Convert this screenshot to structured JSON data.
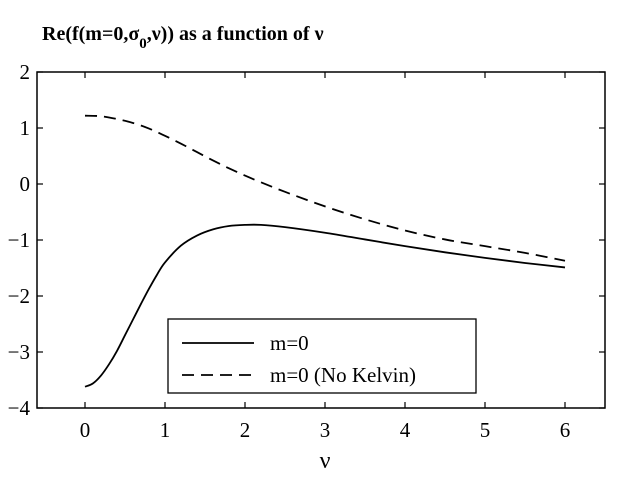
{
  "chart_data": {
    "type": "line",
    "title_parts": {
      "prefix": "Re(f(m=0,σ",
      "subscript": "0",
      "suffix": ",ν)) as a function of ν"
    },
    "xlabel": "ν",
    "ylabel": "",
    "xlim": [
      -0.6,
      6.5
    ],
    "ylim": [
      -4,
      2
    ],
    "xticks": [
      0,
      1,
      2,
      3,
      4,
      5,
      6
    ],
    "yticks": [
      2,
      1,
      0,
      -1,
      -2,
      -3,
      -4
    ],
    "xtick_labels": [
      "0",
      "1",
      "2",
      "3",
      "4",
      "5",
      "6"
    ],
    "ytick_labels": [
      "2",
      "1",
      "0",
      "−1",
      "−2",
      "−3",
      "−4"
    ],
    "grid": false,
    "legend_position": "bottom-center",
    "series": [
      {
        "name": "m=0",
        "style": "solid",
        "color": "#000000",
        "x": [
          0,
          0.1,
          0.2,
          0.3,
          0.4,
          0.5,
          0.6,
          0.7,
          0.8,
          0.9,
          1.0,
          1.2,
          1.4,
          1.6,
          1.8,
          2.0,
          2.2,
          2.5,
          3.0,
          3.5,
          4.0,
          4.5,
          5.0,
          5.5,
          6.0
        ],
        "y": [
          -3.62,
          -3.56,
          -3.42,
          -3.22,
          -2.98,
          -2.7,
          -2.42,
          -2.14,
          -1.87,
          -1.62,
          -1.4,
          -1.1,
          -0.92,
          -0.81,
          -0.75,
          -0.73,
          -0.73,
          -0.77,
          -0.87,
          -0.99,
          -1.11,
          -1.22,
          -1.32,
          -1.41,
          -1.49
        ]
      },
      {
        "name": "m=0 (No Kelvin)",
        "style": "dashed",
        "color": "#000000",
        "x": [
          0,
          0.2,
          0.4,
          0.6,
          0.8,
          1.0,
          1.2,
          1.4,
          1.6,
          1.8,
          2.0,
          2.2,
          2.5,
          3.0,
          3.5,
          4.0,
          4.5,
          5.0,
          5.5,
          6.0
        ],
        "y": [
          1.22,
          1.21,
          1.16,
          1.09,
          0.99,
          0.86,
          0.72,
          0.57,
          0.42,
          0.28,
          0.15,
          0.03,
          -0.14,
          -0.4,
          -0.63,
          -0.83,
          -0.99,
          -1.11,
          -1.23,
          -1.37
        ]
      }
    ]
  }
}
